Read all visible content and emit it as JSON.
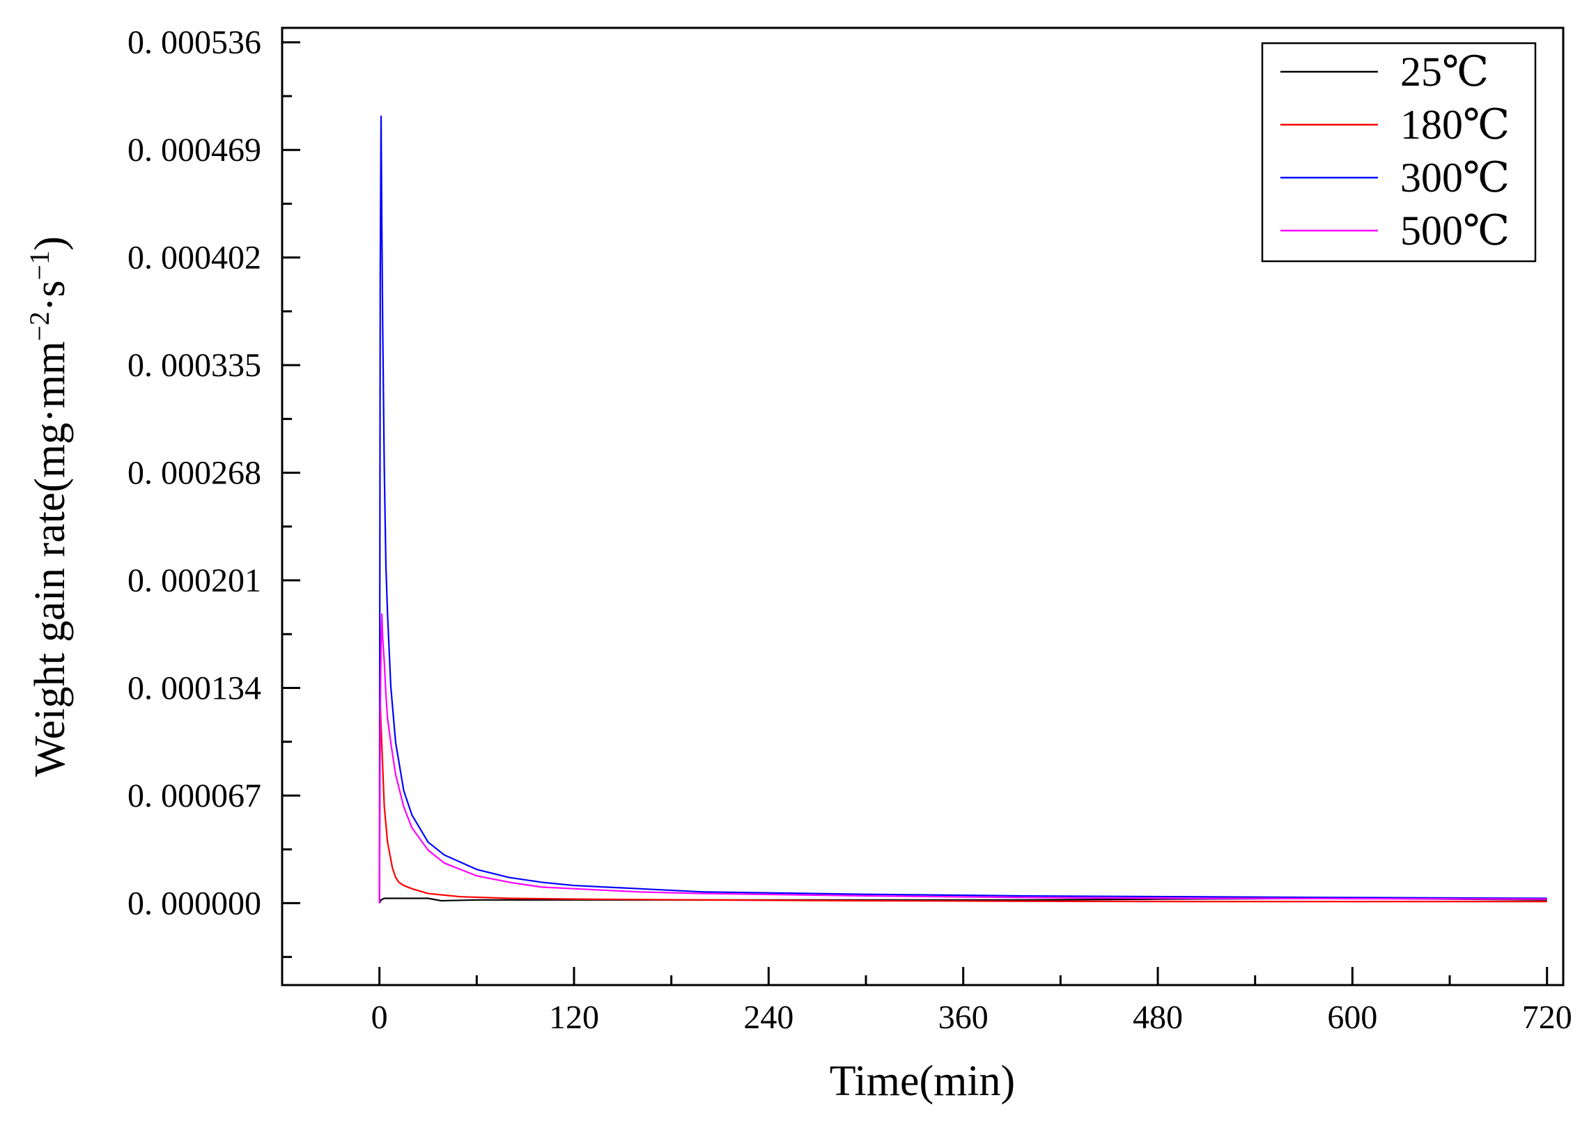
{
  "chart_data": {
    "type": "line",
    "title": "",
    "xlabel": "Time(min)",
    "ylabel_main": "Weight gain rate(mg·mm",
    "ylabel_sup1": "−2",
    "ylabel_mid": "·s",
    "ylabel_sup2": "−1",
    "ylabel_end": ")",
    "xlim": [
      -60,
      730
    ],
    "ylim": [
      -5.1e-05,
      0.000545
    ],
    "x_ticks": [
      0,
      120,
      240,
      360,
      480,
      600,
      720
    ],
    "x_tick_labels": [
      "0",
      "120",
      "240",
      "360",
      "480",
      "600",
      "720"
    ],
    "y_ticks": [
      0,
      6.7e-05,
      0.000134,
      0.000201,
      0.000268,
      0.000335,
      0.000402,
      0.000469,
      0.000536
    ],
    "y_tick_labels": [
      "0. 000000",
      "0. 000067",
      "0. 000134",
      "0. 000201",
      "0. 000268",
      "0. 000335",
      "0. 000402",
      "0. 000469",
      "0. 000536"
    ],
    "grid": false,
    "legend_position": "top-right",
    "series": [
      {
        "name": "25℃",
        "color": "#000000",
        "x": [
          0,
          1,
          3,
          10,
          30,
          38,
          60,
          100,
          200,
          300,
          400,
          480,
          600,
          720
        ],
        "y": [
          0,
          2e-06,
          3e-06,
          3e-06,
          3e-06,
          1.5e-06,
          2e-06,
          2e-06,
          2e-06,
          2e-06,
          2e-06,
          2.5e-06,
          3e-06,
          2e-06
        ]
      },
      {
        "name": "180℃",
        "color": "#ff0000",
        "x": [
          0,
          0.5,
          1,
          2,
          3,
          5,
          8,
          10,
          12,
          15,
          20,
          30,
          50,
          80,
          120,
          200,
          300,
          400,
          500,
          600,
          720
        ],
        "y": [
          0,
          0.000125,
          0.00011,
          8.5e-05,
          6e-05,
          3.8e-05,
          2.2e-05,
          1.6e-05,
          1.3e-05,
          1.1e-05,
          9e-06,
          6e-06,
          4e-06,
          3e-06,
          2.5e-06,
          2e-06,
          1.5e-06,
          1.2e-06,
          1e-06,
          1e-06,
          1e-06
        ]
      },
      {
        "name": "300℃",
        "color": "#0000ff",
        "x": [
          0,
          0.5,
          1,
          1.5,
          2,
          3,
          4,
          5,
          7,
          10,
          15,
          20,
          30,
          40,
          60,
          80,
          100,
          120,
          160,
          200,
          300,
          400,
          500,
          600,
          720
        ],
        "y": [
          0,
          0.00039,
          0.00049,
          0.00042,
          0.00036,
          0.00027,
          0.00021,
          0.00018,
          0.000135,
          0.0001,
          7e-05,
          5.5e-05,
          3.8e-05,
          3e-05,
          2.1e-05,
          1.6e-05,
          1.3e-05,
          1.1e-05,
          9e-06,
          7e-06,
          5.5e-06,
          4.5e-06,
          4e-06,
          3.5e-06,
          3e-06
        ]
      },
      {
        "name": "500℃",
        "color": "#ff00ff",
        "x": [
          0,
          0.5,
          1,
          1.5,
          2,
          3,
          4,
          5,
          7,
          10,
          15,
          20,
          30,
          40,
          60,
          80,
          100,
          120,
          160,
          200,
          300,
          400,
          500,
          600,
          720
        ],
        "y": [
          0,
          0.00012,
          0.00016,
          0.00018,
          0.000165,
          0.00015,
          0.00013,
          0.000115,
          0.0001,
          8e-05,
          6e-05,
          4.7e-05,
          3.3e-05,
          2.5e-05,
          1.7e-05,
          1.3e-05,
          1e-05,
          9e-06,
          7e-06,
          6e-06,
          4.5e-06,
          3.5e-06,
          3e-06,
          2.8e-06,
          2.5e-06
        ]
      }
    ]
  }
}
